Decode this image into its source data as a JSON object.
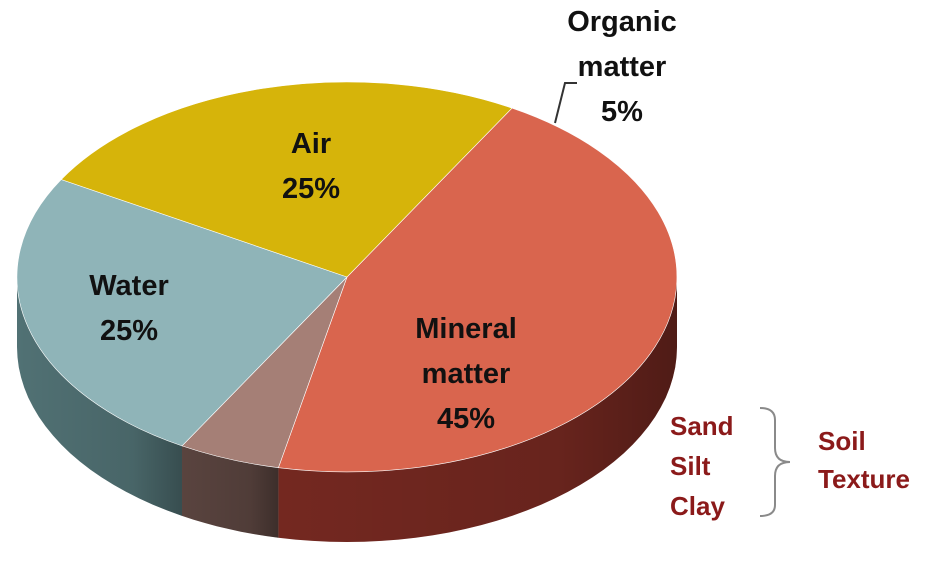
{
  "chart_data": {
    "type": "pie",
    "style": "3d",
    "series": [
      {
        "values": [
          45,
          5,
          25,
          25
        ],
        "slices": [
          {
            "label_lines": [
              "Mineral",
              "matter"
            ],
            "value": 45,
            "value_label": "45%",
            "color": "#D9654E",
            "side_color": "#7A2A22"
          },
          {
            "label_lines": [
              "Organic",
              "matter"
            ],
            "value": 5,
            "value_label": "5%",
            "color": "#A57F76",
            "side_color": "#5E4742"
          },
          {
            "label_lines": [
              "Air"
            ],
            "value": 25,
            "value_label": "25%",
            "color": "#8FB4B8",
            "side_color": "#55777A"
          },
          {
            "label_lines": [
              "Water"
            ],
            "value": 25,
            "value_label": "25%",
            "color": "#D6B40A",
            "side_color": "#8A7206"
          }
        ]
      }
    ],
    "annotation": {
      "items": [
        "Sand",
        "Silt",
        "Clay"
      ],
      "group_label_lines": [
        "Soil",
        "Texture"
      ],
      "color": "#8B1A1A",
      "bracket_color": "#8A8A8A"
    }
  }
}
